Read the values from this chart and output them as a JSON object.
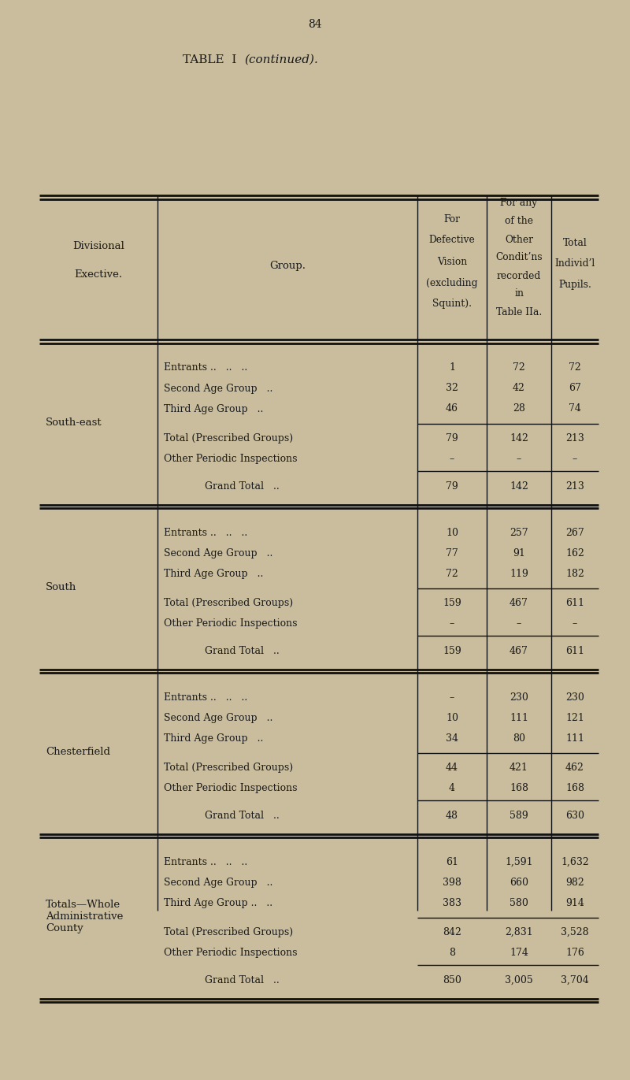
{
  "page_number": "84",
  "title_normal": "TABLE  I  ",
  "title_italic": "(continued).",
  "background_color": "#c9bd9e",
  "text_color": "#1a1a1a",
  "sections": [
    {
      "division": "South-east",
      "rows": [
        {
          "group": "Entrants ..   ..   ..",
          "col3": "1",
          "col4": "72",
          "col5": "72"
        },
        {
          "group": "Second Age Group   ..",
          "col3": "32",
          "col4": "42",
          "col5": "67"
        },
        {
          "group": "Third Age Group   ..",
          "col3": "46",
          "col4": "28",
          "col5": "74"
        }
      ],
      "total_prescribed": {
        "col3": "79",
        "col4": "142",
        "col5": "213"
      },
      "other_periodic": {
        "col3": "–",
        "col4": "–",
        "col5": "–"
      },
      "grand_total": {
        "col3": "79",
        "col4": "142",
        "col5": "213"
      }
    },
    {
      "division": "South",
      "rows": [
        {
          "group": "Entrants ..   ..   ..",
          "col3": "10",
          "col4": "257",
          "col5": "267"
        },
        {
          "group": "Second Age Group   ..",
          "col3": "77",
          "col4": "91",
          "col5": "162"
        },
        {
          "group": "Third Age Group   ..",
          "col3": "72",
          "col4": "119",
          "col5": "182"
        }
      ],
      "total_prescribed": {
        "col3": "159",
        "col4": "467",
        "col5": "611"
      },
      "other_periodic": {
        "col3": "–",
        "col4": "–",
        "col5": "–"
      },
      "grand_total": {
        "col3": "159",
        "col4": "467",
        "col5": "611"
      }
    },
    {
      "division": "Chesterfield",
      "rows": [
        {
          "group": "Entrants ..   ..   ..",
          "col3": "–",
          "col4": "230",
          "col5": "230"
        },
        {
          "group": "Second Age Group   ..",
          "col3": "10",
          "col4": "111",
          "col5": "121"
        },
        {
          "group": "Third Age Group   ..",
          "col3": "34",
          "col4": "80",
          "col5": "111"
        }
      ],
      "total_prescribed": {
        "col3": "44",
        "col4": "421",
        "col5": "462"
      },
      "other_periodic": {
        "col3": "4",
        "col4": "168",
        "col5": "168"
      },
      "grand_total": {
        "col3": "48",
        "col4": "589",
        "col5": "630"
      }
    },
    {
      "division": "Totals—Whole\nAdministrative\nCounty",
      "rows": [
        {
          "group": "Entrants ..   ..   ..",
          "col3": "61",
          "col4": "1,591",
          "col5": "1,632"
        },
        {
          "group": "Second Age Group   ..",
          "col3": "398",
          "col4": "660",
          "col5": "982"
        },
        {
          "group": "Third Age Group ..   ..",
          "col3": "383",
          "col4": "580",
          "col5": "914"
        }
      ],
      "total_prescribed": {
        "col3": "842",
        "col4": "2,831",
        "col5": "3,528"
      },
      "other_periodic": {
        "col3": "8",
        "col4": "174",
        "col5": "176"
      },
      "grand_total": {
        "col3": "850",
        "col4": "3,005",
        "col5": "3,704"
      }
    }
  ]
}
